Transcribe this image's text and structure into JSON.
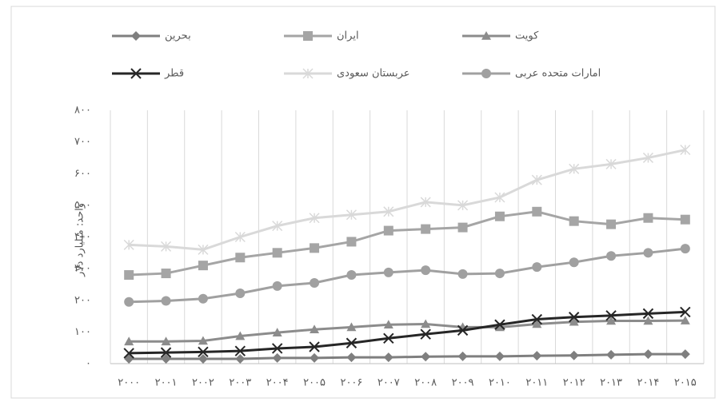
{
  "chart_data": {
    "type": "line",
    "y_label": "واحد: میلیارد دلار",
    "categories": [
      "۲۰۰۰",
      "۲۰۰۱",
      "۲۰۰۲",
      "۲۰۰۳",
      "۲۰۰۴",
      "۲۰۰۵",
      "۲۰۰۶",
      "۲۰۰۷",
      "۲۰۰۸",
      "۲۰۰۹",
      "۲۰۱۰",
      "۲۰۱۱",
      "۲۰۱۲",
      "۲۰۱۳",
      "۲۰۱۴",
      "۲۰۱۵"
    ],
    "series": [
      {
        "name": "بحرین",
        "color": "#7f7f7f",
        "marker": "diamond",
        "values": [
          15,
          15,
          15,
          15,
          18,
          18,
          20,
          20,
          22,
          23,
          23,
          25,
          26,
          28,
          30,
          30
        ]
      },
      {
        "name": "ایران",
        "color": "#a5a5a5",
        "marker": "square",
        "values": [
          280,
          285,
          310,
          335,
          350,
          365,
          385,
          420,
          425,
          430,
          465,
          480,
          450,
          440,
          460,
          455
        ]
      },
      {
        "name": "کویت",
        "color": "#8c8c8c",
        "marker": "triangle",
        "values": [
          70,
          70,
          72,
          87,
          98,
          108,
          115,
          123,
          125,
          115,
          115,
          125,
          132,
          135,
          135,
          136
        ]
      },
      {
        "name": "قطر",
        "color": "#262626",
        "marker": "x",
        "values": [
          33,
          35,
          37,
          40,
          48,
          53,
          65,
          80,
          93,
          105,
          123,
          140,
          147,
          152,
          158,
          163
        ]
      },
      {
        "name": "عربستان سعودی",
        "color": "#d9d9d9",
        "marker": "star",
        "values": [
          375,
          370,
          360,
          400,
          435,
          460,
          470,
          480,
          510,
          500,
          525,
          580,
          615,
          630,
          650,
          675
        ]
      },
      {
        "name": "امارات متحده عربی",
        "color": "#a0a0a0",
        "marker": "circle",
        "values": [
          195,
          198,
          205,
          222,
          245,
          255,
          280,
          288,
          295,
          283,
          285,
          305,
          320,
          340,
          350,
          363
        ]
      }
    ],
    "ylim": [
      0,
      800
    ],
    "yticks": [
      {
        "value": 0,
        "label": "۰"
      },
      {
        "value": 100,
        "label": "۱۰۰"
      },
      {
        "value": 200,
        "label": "۲۰۰"
      },
      {
        "value": 300,
        "label": "۳۰۰"
      },
      {
        "value": 400,
        "label": "۴۰۰"
      },
      {
        "value": 500,
        "label": "۵۰۰"
      },
      {
        "value": 600,
        "label": "۶۰۰"
      },
      {
        "value": 700,
        "label": "۷۰۰"
      },
      {
        "value": 800,
        "label": "۸۰۰"
      }
    ],
    "grid": "x",
    "legend": "top"
  }
}
